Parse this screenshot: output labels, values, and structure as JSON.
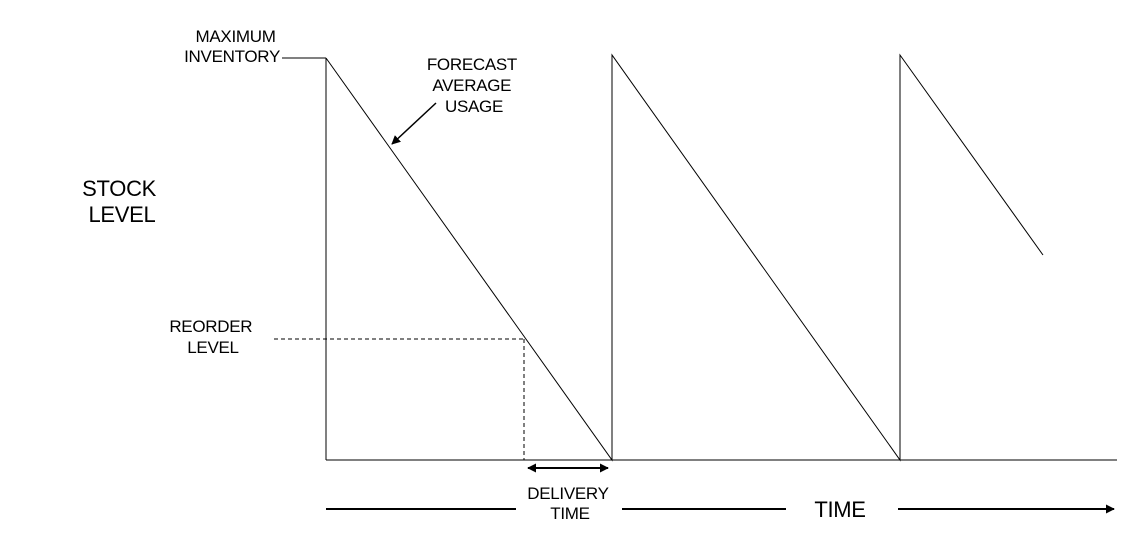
{
  "labels": {
    "max_inventory": [
      "MAXIMUM",
      "INVENTORY"
    ],
    "forecast": [
      "FORECAST",
      "AVERAGE",
      "USAGE"
    ],
    "stock_level": [
      "STOCK",
      "LEVEL"
    ],
    "reorder_level": [
      "REORDER",
      "LEVEL"
    ],
    "delivery_time": [
      "DELIVERY",
      "TIME"
    ],
    "time_axis": "TIME"
  },
  "colors": {
    "line": "#000000",
    "background": "#ffffff"
  }
}
